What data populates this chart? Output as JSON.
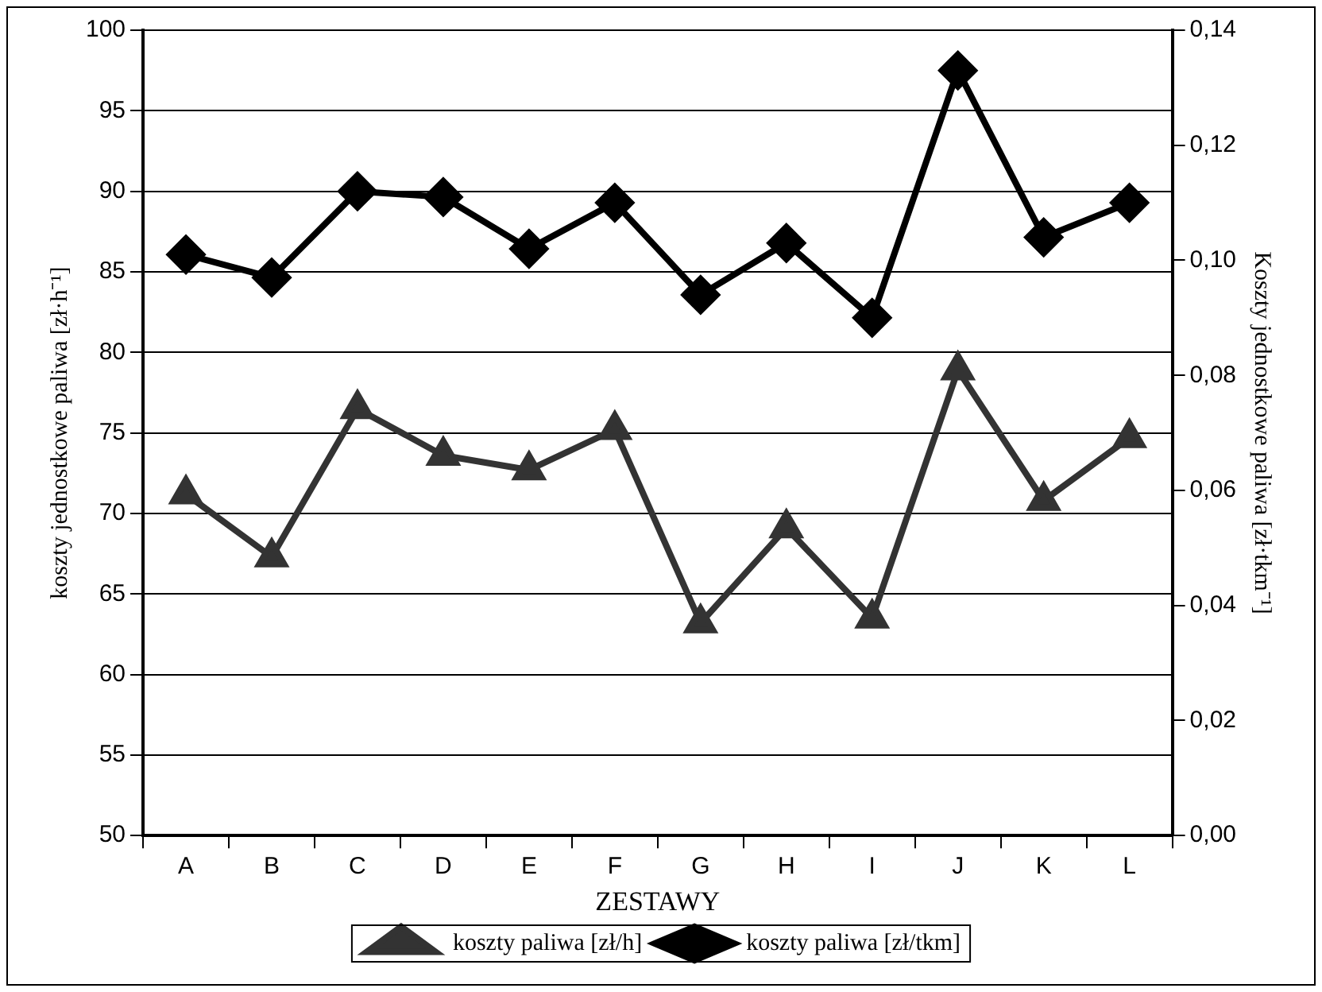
{
  "chart_data": {
    "type": "line",
    "xlabel": "ZESTAWY",
    "ylabel": "koszty jednostkowe paliwa [zł·h⁻¹]",
    "y2label": "Koszty jednostkowe paliwa [zł·tkm⁻¹]",
    "categories": [
      "A",
      "B",
      "C",
      "D",
      "E",
      "F",
      "G",
      "H",
      "I",
      "J",
      "K",
      "L"
    ],
    "series": [
      {
        "name": "koszty paliwa [zł/h]",
        "color": "#333333",
        "marker": "triangle",
        "values": [
          71.2,
          67.3,
          76.5,
          73.6,
          72.7,
          75.2,
          63.2,
          69.1,
          63.5,
          78.9,
          70.8,
          74.7
        ]
      },
      {
        "name": "koszty paliwa [zł/tkm]",
        "color": "#000000",
        "marker": "diamond",
        "axis": "y2",
        "values": [
          0.101,
          0.097,
          0.112,
          0.111,
          0.102,
          0.11,
          0.094,
          0.103,
          0.09,
          0.133,
          0.104,
          0.11
        ]
      }
    ],
    "ylim": [
      50,
      100
    ],
    "yticks": [
      50,
      55,
      60,
      65,
      70,
      75,
      80,
      85,
      90,
      95,
      100
    ],
    "y2lim": [
      0,
      0.14
    ],
    "y2ticks": [
      {
        "value": 0,
        "label": "0,00"
      },
      {
        "value": 0.02,
        "label": "0,02"
      },
      {
        "value": 0.04,
        "label": "0,04"
      },
      {
        "value": 0.06,
        "label": "0,06"
      },
      {
        "value": 0.08,
        "label": "0,08"
      },
      {
        "value": 0.1,
        "label": "0,10"
      },
      {
        "value": 0.12,
        "label": "0,12"
      },
      {
        "value": 0.14,
        "label": "0,14"
      }
    ],
    "grid": "y",
    "legend": "bottom",
    "line_style": "solid"
  }
}
